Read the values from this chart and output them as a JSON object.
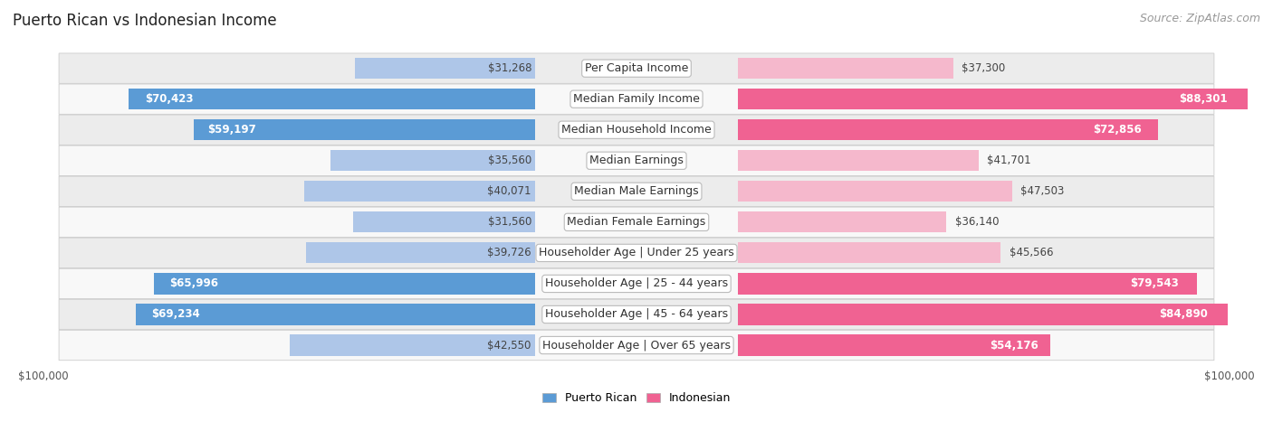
{
  "title": "Puerto Rican vs Indonesian Income",
  "source": "Source: ZipAtlas.com",
  "categories": [
    "Per Capita Income",
    "Median Family Income",
    "Median Household Income",
    "Median Earnings",
    "Median Male Earnings",
    "Median Female Earnings",
    "Householder Age | Under 25 years",
    "Householder Age | 25 - 44 years",
    "Householder Age | 45 - 64 years",
    "Householder Age | Over 65 years"
  ],
  "puerto_rican": [
    31268,
    70423,
    59197,
    35560,
    40071,
    31560,
    39726,
    65996,
    69234,
    42550
  ],
  "indonesian": [
    37300,
    88301,
    72856,
    41701,
    47503,
    36140,
    45566,
    79543,
    84890,
    54176
  ],
  "pr_color_light": "#aec6e8",
  "pr_color_dark": "#5b9bd5",
  "id_color_light": "#f5b8cc",
  "id_color_dark": "#f06292",
  "row_bg_odd": "#ececec",
  "row_bg_even": "#f8f8f8",
  "max_value": 100000,
  "xlabel_left": "$100,000",
  "xlabel_right": "$100,000",
  "legend_pr": "Puerto Rican",
  "legend_id": "Indonesian",
  "title_fontsize": 12,
  "source_fontsize": 9,
  "cat_fontsize": 9,
  "val_fontsize": 8.5,
  "pr_dark_threshold": 50000,
  "id_dark_threshold": 50000
}
